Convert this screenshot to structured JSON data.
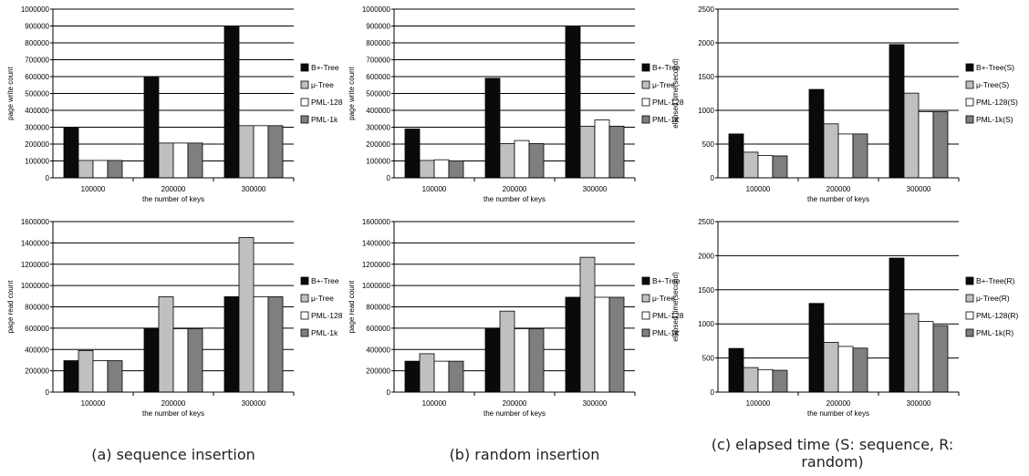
{
  "colors": {
    "B": "#0a0a0a",
    "M": "#c0c0c0",
    "P128": "#ffffff",
    "P1k": "#7f7f7f"
  },
  "captions": {
    "a": "(a) sequence insertion",
    "b": "(b) random insertion",
    "c": "(c) elapsed time (S: sequence, R: random)"
  },
  "chart_data": [
    {
      "type": "bar",
      "categories": [
        "100000",
        "200000",
        "300000"
      ],
      "xlabel": "the number of keys",
      "ylabel": "page write count",
      "ylim": [
        0,
        1000000
      ],
      "yticks": [
        "0",
        "100000",
        "200000",
        "300000",
        "400000",
        "500000",
        "600000",
        "700000",
        "800000",
        "900000",
        "1000000"
      ],
      "grid": true,
      "legend_position": "right",
      "series": [
        {
          "name": "B+-Tree",
          "values": [
            300000,
            600000,
            900000
          ]
        },
        {
          "name": "μ-Tree",
          "values": [
            103000,
            206000,
            309000
          ]
        },
        {
          "name": "PML-128",
          "values": [
            103000,
            206000,
            309000
          ]
        },
        {
          "name": "PML-1k",
          "values": [
            103000,
            206000,
            309000
          ]
        }
      ]
    },
    {
      "type": "bar",
      "categories": [
        "100000",
        "200000",
        "300000"
      ],
      "xlabel": "the number of keys",
      "ylabel": "page write count",
      "ylim": [
        0,
        1000000
      ],
      "yticks": [
        "0",
        "100000",
        "200000",
        "300000",
        "400000",
        "500000",
        "600000",
        "700000",
        "800000",
        "900000",
        "1000000"
      ],
      "grid": true,
      "legend_position": "right",
      "series": [
        {
          "name": "B+-Tree",
          "values": [
            290000,
            590000,
            900000
          ]
        },
        {
          "name": "μ-Tree",
          "values": [
            103000,
            203000,
            306000
          ]
        },
        {
          "name": "PML-128",
          "values": [
            107000,
            221000,
            343000
          ]
        },
        {
          "name": "PML-1k",
          "values": [
            101000,
            203000,
            306000
          ]
        }
      ]
    },
    {
      "type": "bar",
      "categories": [
        "100000",
        "200000",
        "300000"
      ],
      "xlabel": "the number of keys",
      "ylabel": "elapsed time(second)",
      "ylim": [
        0,
        2500
      ],
      "yticks": [
        "0",
        "500",
        "1000",
        "1500",
        "2000",
        "2500"
      ],
      "grid": true,
      "legend_position": "right",
      "series": [
        {
          "name": "B+-Tree(S)",
          "values": [
            650,
            1310,
            1975
          ]
        },
        {
          "name": "μ-Tree(S)",
          "values": [
            380,
            800,
            1255
          ]
        },
        {
          "name": "PML-128(S)",
          "values": [
            330,
            650,
            980
          ]
        },
        {
          "name": "PML-1k(S)",
          "values": [
            325,
            650,
            980
          ]
        }
      ]
    },
    {
      "type": "bar",
      "categories": [
        "100000",
        "200000",
        "300000"
      ],
      "xlabel": "the number of keys",
      "ylabel": "page read count",
      "ylim": [
        0,
        1600000
      ],
      "yticks": [
        "0",
        "200000",
        "400000",
        "600000",
        "800000",
        "1000000",
        "1200000",
        "1400000",
        "1600000"
      ],
      "grid": true,
      "legend_position": "right",
      "series": [
        {
          "name": "B+-Tree",
          "values": [
            295000,
            595000,
            895000
          ]
        },
        {
          "name": "μ-Tree",
          "values": [
            390000,
            895000,
            1450000
          ]
        },
        {
          "name": "PML-128",
          "values": [
            295000,
            595000,
            895000
          ]
        },
        {
          "name": "PML-1k",
          "values": [
            295000,
            595000,
            895000
          ]
        }
      ]
    },
    {
      "type": "bar",
      "categories": [
        "100000",
        "200000",
        "300000"
      ],
      "xlabel": "the number of keys",
      "ylabel": "page read count",
      "ylim": [
        0,
        1600000
      ],
      "yticks": [
        "0",
        "200000",
        "400000",
        "600000",
        "800000",
        "1000000",
        "1200000",
        "1400000",
        "1600000"
      ],
      "grid": true,
      "legend_position": "right",
      "series": [
        {
          "name": "B+-Tree",
          "values": [
            290000,
            595000,
            890000
          ]
        },
        {
          "name": "μ-Tree",
          "values": [
            360000,
            760000,
            1265000
          ]
        },
        {
          "name": "PML-128",
          "values": [
            290000,
            595000,
            890000
          ]
        },
        {
          "name": "PML-1k",
          "values": [
            290000,
            595000,
            890000
          ]
        }
      ]
    },
    {
      "type": "bar",
      "categories": [
        "100000",
        "200000",
        "300000"
      ],
      "xlabel": "the number of keys",
      "ylabel": "elapsed time(second)",
      "ylim": [
        0,
        2500
      ],
      "yticks": [
        "0",
        "500",
        "1000",
        "1500",
        "2000",
        "2500"
      ],
      "grid": true,
      "legend_position": "right",
      "series": [
        {
          "name": "B+-Tree(R)",
          "values": [
            640,
            1300,
            1965
          ]
        },
        {
          "name": "μ-Tree(R)",
          "values": [
            360,
            730,
            1150
          ]
        },
        {
          "name": "PML-128(R)",
          "values": [
            330,
            670,
            1035
          ]
        },
        {
          "name": "PML-1k(R)",
          "values": [
            320,
            645,
            975
          ]
        }
      ]
    }
  ]
}
